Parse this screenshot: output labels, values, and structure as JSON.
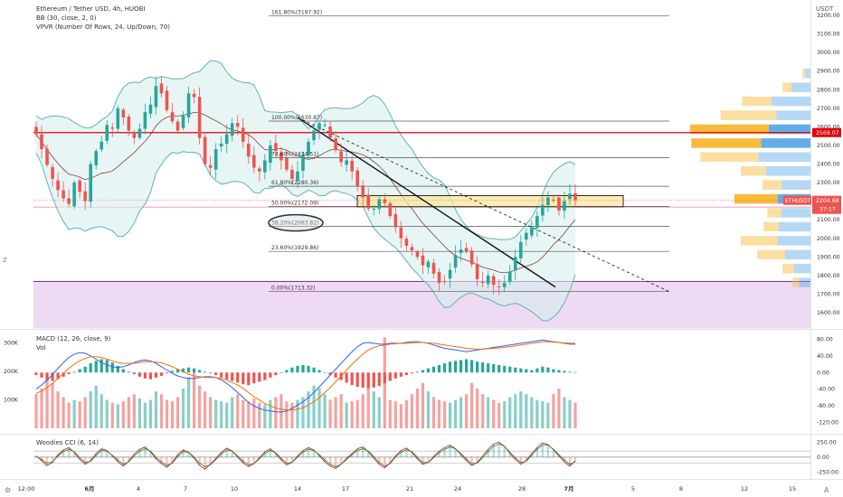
{
  "header": {
    "symbol_line": "Ethereum / Tether USD, 4h, HUOBI",
    "bb_line": "BB (30, close, 2, 0)",
    "vpvr_line": "VPVR (Number Of Rows, 24, Up/Down, 70)",
    "currency": "USDT"
  },
  "macd_pane": {
    "label": "MACD (12, 26, close, 9)",
    "vol_label": "Vol"
  },
  "cci_pane": {
    "label": "Woodies CCI (6, 14)"
  },
  "badges": {
    "red_level": "2569.07",
    "symbol": "ETHUSDT",
    "last_price": "2204.68",
    "countdown": "37:17"
  },
  "colors": {
    "up": "#26a69a",
    "down": "#ef5350",
    "bb_fill": "#d7eeee",
    "bb_band": "#5fb3b3",
    "basis": "#8a3b3b",
    "fib_line": "#555555",
    "red_line": "#e3000b",
    "zone_purple": "#e8cdef",
    "box_yellow": "#f9e79f",
    "macd_line": "#2962ff",
    "signal_line": "#ff6d00",
    "vpvr_up": "#f7b731",
    "vpvr_down": "#5aa9e6"
  },
  "chart_data": {
    "type": "candlestick",
    "title": "Ethereum / Tether USD, 4h, HUOBI",
    "y_axis": {
      "unit": "USDT",
      "ticks": [
        "3200.00",
        "3100.00",
        "3000.00",
        "2900.00",
        "2800.00",
        "2700.00",
        "2600.00",
        "2500.00",
        "2400.00",
        "2300.00",
        "2200.00",
        "2100.00",
        "2000.00",
        "1900.00",
        "1800.00",
        "1700.00",
        "1600.00"
      ],
      "range": [
        1515,
        3210
      ]
    },
    "x_axis": {
      "ticks": [
        "12:00",
        "6月",
        "4",
        "7",
        "10",
        "14",
        "17",
        "21",
        "24",
        "28",
        "7月",
        "5",
        "8",
        "12",
        "15"
      ]
    },
    "fib_levels": [
      {
        "label": "161.80%(3197.92)",
        "value": 3197.92
      },
      {
        "label": "100.00%(2630.87)",
        "value": 2630.87
      },
      {
        "label": "78.60%(2434.51)",
        "value": 2434.51
      },
      {
        "label": "61.80%(2280.36)",
        "value": 2280.36
      },
      {
        "label": "50.00%(2172.09)",
        "value": 2172.09
      },
      {
        "label": "38.20%(2063.82)",
        "value": 2063.82,
        "circled": true
      },
      {
        "label": "23.60%(1929.86)",
        "value": 1929.86
      },
      {
        "label": "0.00%(1713.32)",
        "value": 1713.32
      }
    ],
    "horizontal_line": 2569.07,
    "pink_line": 2168,
    "support_zone": [
      1515,
      1768
    ],
    "resistance_box": [
      2170,
      2230
    ],
    "last_price": 2204.68,
    "trendlines": [
      {
        "style": "solid",
        "from": [
          "14",
          2650
        ],
        "to": [
          "29",
          1738
        ]
      },
      {
        "style": "dashed",
        "from": [
          "14",
          2650
        ],
        "to": [
          "8",
          1713
        ]
      }
    ],
    "candles_close": [
      2560,
      2480,
      2395,
      2320,
      2260,
      2215,
      2185,
      2300,
      2250,
      2200,
      2400,
      2470,
      2520,
      2610,
      2590,
      2700,
      2650,
      2580,
      2540,
      2590,
      2680,
      2720,
      2820,
      2780,
      2690,
      2630,
      2580,
      2660,
      2780,
      2760,
      2540,
      2400,
      2380,
      2480,
      2510,
      2560,
      2620,
      2600,
      2520,
      2440,
      2380,
      2360,
      2420,
      2500,
      2470,
      2420,
      2370,
      2320,
      2360,
      2450,
      2520,
      2580,
      2620,
      2610,
      2540,
      2480,
      2410,
      2420,
      2360,
      2280,
      2220,
      2160,
      2160,
      2210,
      2190,
      2120,
      2060,
      2000,
      1960,
      1935,
      1900,
      1855,
      1875,
      1810,
      1760,
      1770,
      1830,
      1910,
      1940,
      1930,
      1860,
      1780,
      1760,
      1800,
      1750,
      1740,
      1760,
      1820,
      1900,
      1980,
      2030,
      2060,
      2120,
      2180,
      2220,
      2205,
      2150,
      2200,
      2240,
      2204.68
    ],
    "vpvr": {
      "rows_price_centers": [
        2885,
        2810,
        2735,
        2660,
        2585,
        2510,
        2435,
        2360,
        2285,
        2210,
        2135,
        2060,
        1985,
        1910,
        1835,
        1760
      ],
      "up_volume_rel": [
        0.05,
        0.14,
        0.46,
        0.88,
        1.24,
        1.1,
        0.92,
        0.4,
        0.3,
        0.68,
        0.22,
        0.24,
        0.58,
        0.44,
        0.18,
        0.1
      ],
      "down_volume_rel": [
        0.08,
        0.3,
        0.62,
        0.54,
        0.66,
        0.78,
        0.82,
        0.7,
        0.46,
        0.52,
        0.46,
        0.5,
        0.52,
        0.4,
        0.26,
        0.18
      ]
    },
    "macd": {
      "right_ticks": [
        "80.00",
        "40.00",
        "0.00",
        "-40.00",
        "-80.00",
        "-120.00"
      ],
      "left_volume_ticks": [
        "300K",
        "200K",
        "100K"
      ],
      "range": [
        -125,
        85
      ],
      "vol_max_k": 350,
      "histogram": [
        -6,
        -12,
        -18,
        -20,
        -16,
        -10,
        -4,
        2,
        8,
        14,
        22,
        28,
        32,
        30,
        24,
        16,
        8,
        2,
        -4,
        -10,
        -14,
        -16,
        -12,
        -8,
        -2,
        4,
        8,
        10,
        12,
        10,
        6,
        2,
        -2,
        -6,
        -12,
        -16,
        -20,
        -24,
        -28,
        -30,
        -26,
        -22,
        -18,
        -12,
        -6,
        0,
        6,
        12,
        16,
        18,
        16,
        12,
        6,
        0,
        -6,
        -12,
        -18,
        -24,
        -30,
        -34,
        -36,
        -38,
        -36,
        -32,
        -26,
        -20,
        -14,
        -10,
        -6,
        -2,
        2,
        6,
        10,
        14,
        18,
        22,
        26,
        28,
        30,
        32,
        30,
        26,
        24,
        22,
        20,
        18,
        16,
        14,
        12,
        10,
        8,
        6,
        10,
        14,
        12,
        8,
        6,
        4,
        2,
        1
      ],
      "macd_line": [
        -40,
        -30,
        -18,
        -5,
        10,
        24,
        36,
        44,
        48,
        46,
        40,
        32,
        24,
        18,
        14,
        12,
        14,
        18,
        24,
        28,
        30,
        28,
        22,
        14,
        6,
        -2,
        -8,
        -12,
        -14,
        -14,
        -12,
        -10,
        -10,
        -12,
        -18,
        -26,
        -36,
        -48,
        -60,
        -72,
        -80,
        -86,
        -90,
        -92,
        -94,
        -95,
        -92,
        -86,
        -78,
        -70,
        -60,
        -48,
        -34,
        -20,
        -6,
        8,
        22,
        36,
        50,
        62,
        70,
        72,
        70,
        68,
        68,
        70,
        70,
        70,
        72,
        74,
        74,
        72,
        70,
        66,
        62,
        58,
        56,
        54,
        52,
        50,
        52,
        54,
        56,
        58,
        60,
        62,
        64,
        66,
        68,
        70,
        72,
        74,
        76,
        78,
        76,
        74,
        72,
        70,
        68,
        68
      ],
      "signal_line": [
        -50,
        -44,
        -36,
        -26,
        -14,
        -2,
        10,
        20,
        28,
        34,
        38,
        38,
        36,
        32,
        28,
        24,
        22,
        22,
        22,
        24,
        26,
        26,
        25,
        23,
        19,
        14,
        8,
        2,
        -4,
        -8,
        -10,
        -12,
        -12,
        -12,
        -14,
        -18,
        -24,
        -30,
        -38,
        -48,
        -58,
        -66,
        -74,
        -80,
        -85,
        -88,
        -90,
        -90,
        -88,
        -84,
        -78,
        -70,
        -60,
        -48,
        -36,
        -22,
        -8,
        6,
        20,
        32,
        44,
        54,
        60,
        64,
        66,
        68,
        69,
        70,
        70,
        71,
        72,
        72,
        71,
        70,
        68,
        66,
        64,
        62,
        60,
        58,
        57,
        56,
        56,
        57,
        58,
        59,
        60,
        62,
        64,
        66,
        68,
        70,
        72,
        74,
        74,
        73,
        72,
        71,
        70,
        70
      ],
      "volume_k": [
        120,
        140,
        180,
        160,
        130,
        110,
        90,
        100,
        95,
        110,
        130,
        150,
        120,
        100,
        90,
        85,
        95,
        110,
        120,
        105,
        90,
        100,
        130,
        120,
        100,
        95,
        110,
        140,
        180,
        200,
        150,
        130,
        110,
        100,
        95,
        90,
        110,
        120,
        100,
        95,
        105,
        90,
        85,
        100,
        110,
        120,
        95,
        90,
        100,
        110,
        130,
        150,
        140,
        120,
        100,
        110,
        120,
        90,
        95,
        100,
        120,
        140,
        130,
        110,
        320,
        100,
        95,
        85,
        100,
        120,
        140,
        160,
        130,
        110,
        100,
        95,
        90,
        100,
        110,
        120,
        160,
        140,
        120,
        110,
        100,
        90,
        95,
        110,
        120,
        130,
        120,
        110,
        100,
        95,
        90,
        120,
        140,
        110,
        100,
        90
      ]
    },
    "cci": {
      "right_ticks": [
        "250.00",
        "0.00",
        "-250.00"
      ],
      "range": [
        -320,
        300
      ],
      "reference_lines": [
        100,
        0,
        -100
      ],
      "series": [
        20,
        -60,
        -140,
        -90,
        40,
        120,
        160,
        80,
        -40,
        -120,
        -60,
        60,
        140,
        110,
        20,
        -80,
        -150,
        -70,
        50,
        130,
        170,
        90,
        -30,
        -110,
        -170,
        -90,
        40,
        120,
        80,
        -20,
        -140,
        -200,
        -120,
        -20,
        80,
        150,
        100,
        0,
        -100,
        -160,
        -110,
        -10,
        90,
        140,
        60,
        -50,
        -130,
        -90,
        20,
        110,
        160,
        120,
        20,
        -80,
        -150,
        -190,
        -120,
        -20,
        60,
        140,
        170,
        90,
        -20,
        -120,
        -180,
        -100,
        20,
        110,
        150,
        80,
        -30,
        -120,
        -90,
        10,
        100,
        160,
        200,
        140,
        40,
        -60,
        -140,
        -90,
        20,
        130,
        220,
        250,
        180,
        60,
        -40,
        -120,
        -60,
        60,
        160,
        240,
        210,
        120,
        20,
        -80,
        -150,
        -60
      ],
      "zero_lag": [
        10,
        -40,
        -100,
        -80,
        20,
        90,
        130,
        90,
        -10,
        -90,
        -70,
        30,
        110,
        100,
        30,
        -50,
        -120,
        -80,
        20,
        100,
        140,
        100,
        0,
        -80,
        -140,
        -100,
        10,
        90,
        80,
        0,
        -100,
        -160,
        -130,
        -40,
        50,
        120,
        100,
        20,
        -70,
        -130,
        -110,
        -30,
        60,
        110,
        70,
        -20,
        -100,
        -90,
        0,
        80,
        130,
        110,
        40,
        -50,
        -120,
        -160,
        -120,
        -40,
        40,
        110,
        140,
        100,
        10,
        -90,
        -150,
        -110,
        0,
        80,
        120,
        90,
        0,
        -90,
        -90,
        -10,
        70,
        130,
        170,
        140,
        60,
        -30,
        -110,
        -100,
        -10,
        90,
        180,
        220,
        180,
        80,
        -10,
        -90,
        -70,
        30,
        130,
        200,
        200,
        130,
        40,
        -50,
        -120,
        -80
      ]
    }
  }
}
